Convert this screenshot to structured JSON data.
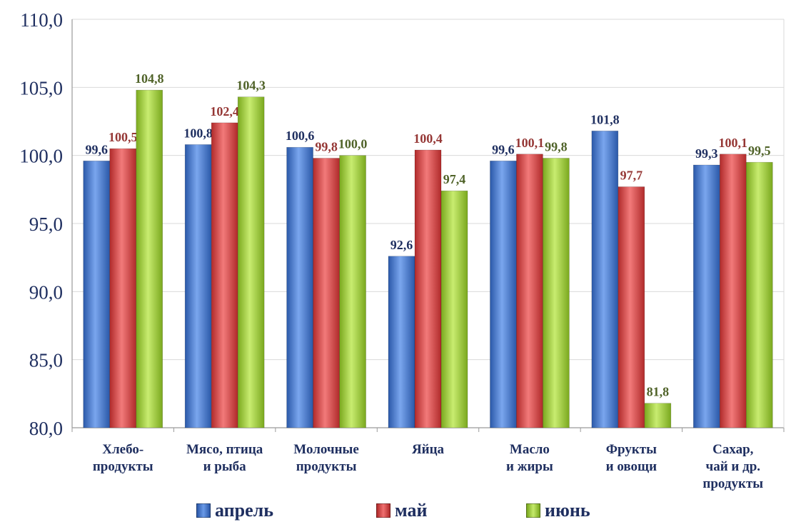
{
  "chart_data": {
    "type": "bar",
    "categories": [
      [
        "Хлебо-",
        "продукты"
      ],
      [
        "Мясо, птица",
        "и рыба"
      ],
      [
        "Молочные",
        "продукты"
      ],
      [
        "Яйца"
      ],
      [
        "Масло",
        "и жиры"
      ],
      [
        "Фрукты",
        "и овощи"
      ],
      [
        "Сахар,",
        "чай и др.",
        "продукты"
      ]
    ],
    "series": [
      {
        "name": "апрель",
        "color": "#3a6fc9",
        "label_color": "#1f2f60",
        "values": [
          99.6,
          100.8,
          100.6,
          92.6,
          99.6,
          101.8,
          99.3
        ]
      },
      {
        "name": "май",
        "color": "#d63b3b",
        "label_color": "#953735",
        "values": [
          100.5,
          102.4,
          99.8,
          100.4,
          100.1,
          97.7,
          100.1
        ]
      },
      {
        "name": "июнь",
        "color": "#9acd32",
        "label_color": "#4f6228",
        "values": [
          104.8,
          104.3,
          100.0,
          97.4,
          99.8,
          81.8,
          99.5
        ]
      }
    ],
    "value_labels": [
      [
        "99,6",
        "100,5",
        "104,8"
      ],
      [
        "100,8",
        "102,4",
        "104,3"
      ],
      [
        "100,6",
        "99,8",
        "100,0"
      ],
      [
        "92,6",
        "100,4",
        "97,4"
      ],
      [
        "99,6",
        "100,1",
        "99,8"
      ],
      [
        "101,8",
        "97,7",
        "81,8"
      ],
      [
        "99,3",
        "100,1",
        "99,5"
      ]
    ],
    "y_ticks": [
      80,
      85,
      90,
      95,
      100,
      105,
      110
    ],
    "y_tick_labels": [
      "80,0",
      "85,0",
      "90,0",
      "95,0",
      "100,0",
      "105,0",
      "110,0"
    ],
    "ylim": [
      80,
      110
    ],
    "grid": true,
    "legend_position": "bottom"
  },
  "legend": {
    "items": [
      "апрель",
      "май",
      "июнь"
    ]
  }
}
